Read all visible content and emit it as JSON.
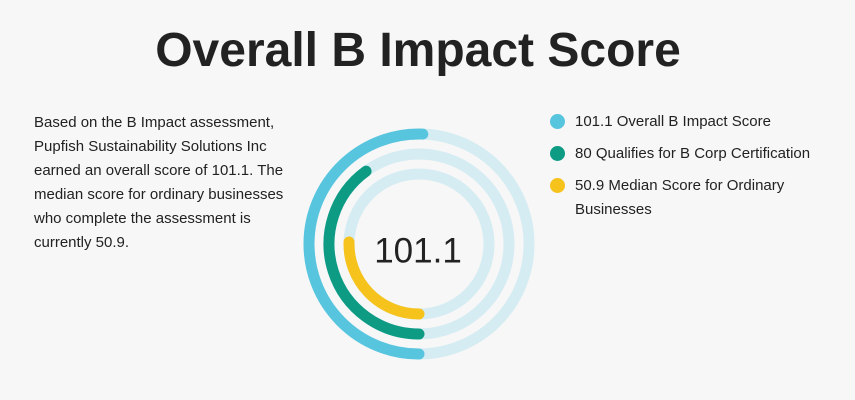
{
  "title": "Overall B Impact Score",
  "description": "Based on the B Impact assessment, Pupfish Sustainability Solutions Inc earned an overall score of 101.1. The median score for ordinary businesses who complete the assessment is currently 50.9.",
  "chart_data": {
    "type": "radial_bar",
    "center_label": "101.1",
    "max": 200,
    "track_color": "#d6ecf3",
    "series": [
      {
        "name": "Overall B Impact Score",
        "value": 101.1,
        "color": "#58c5df",
        "label": "101.1 Overall B Impact Score"
      },
      {
        "name": "Qualifies for B Corp Certification",
        "value": 80,
        "color": "#0d9b84",
        "label": "80 Qualifies for B Corp Certification"
      },
      {
        "name": "Median Score for Ordinary Businesses",
        "value": 50.9,
        "color": "#f6c21c",
        "label": "50.9 Median Score for Ordinary Businesses"
      }
    ]
  }
}
